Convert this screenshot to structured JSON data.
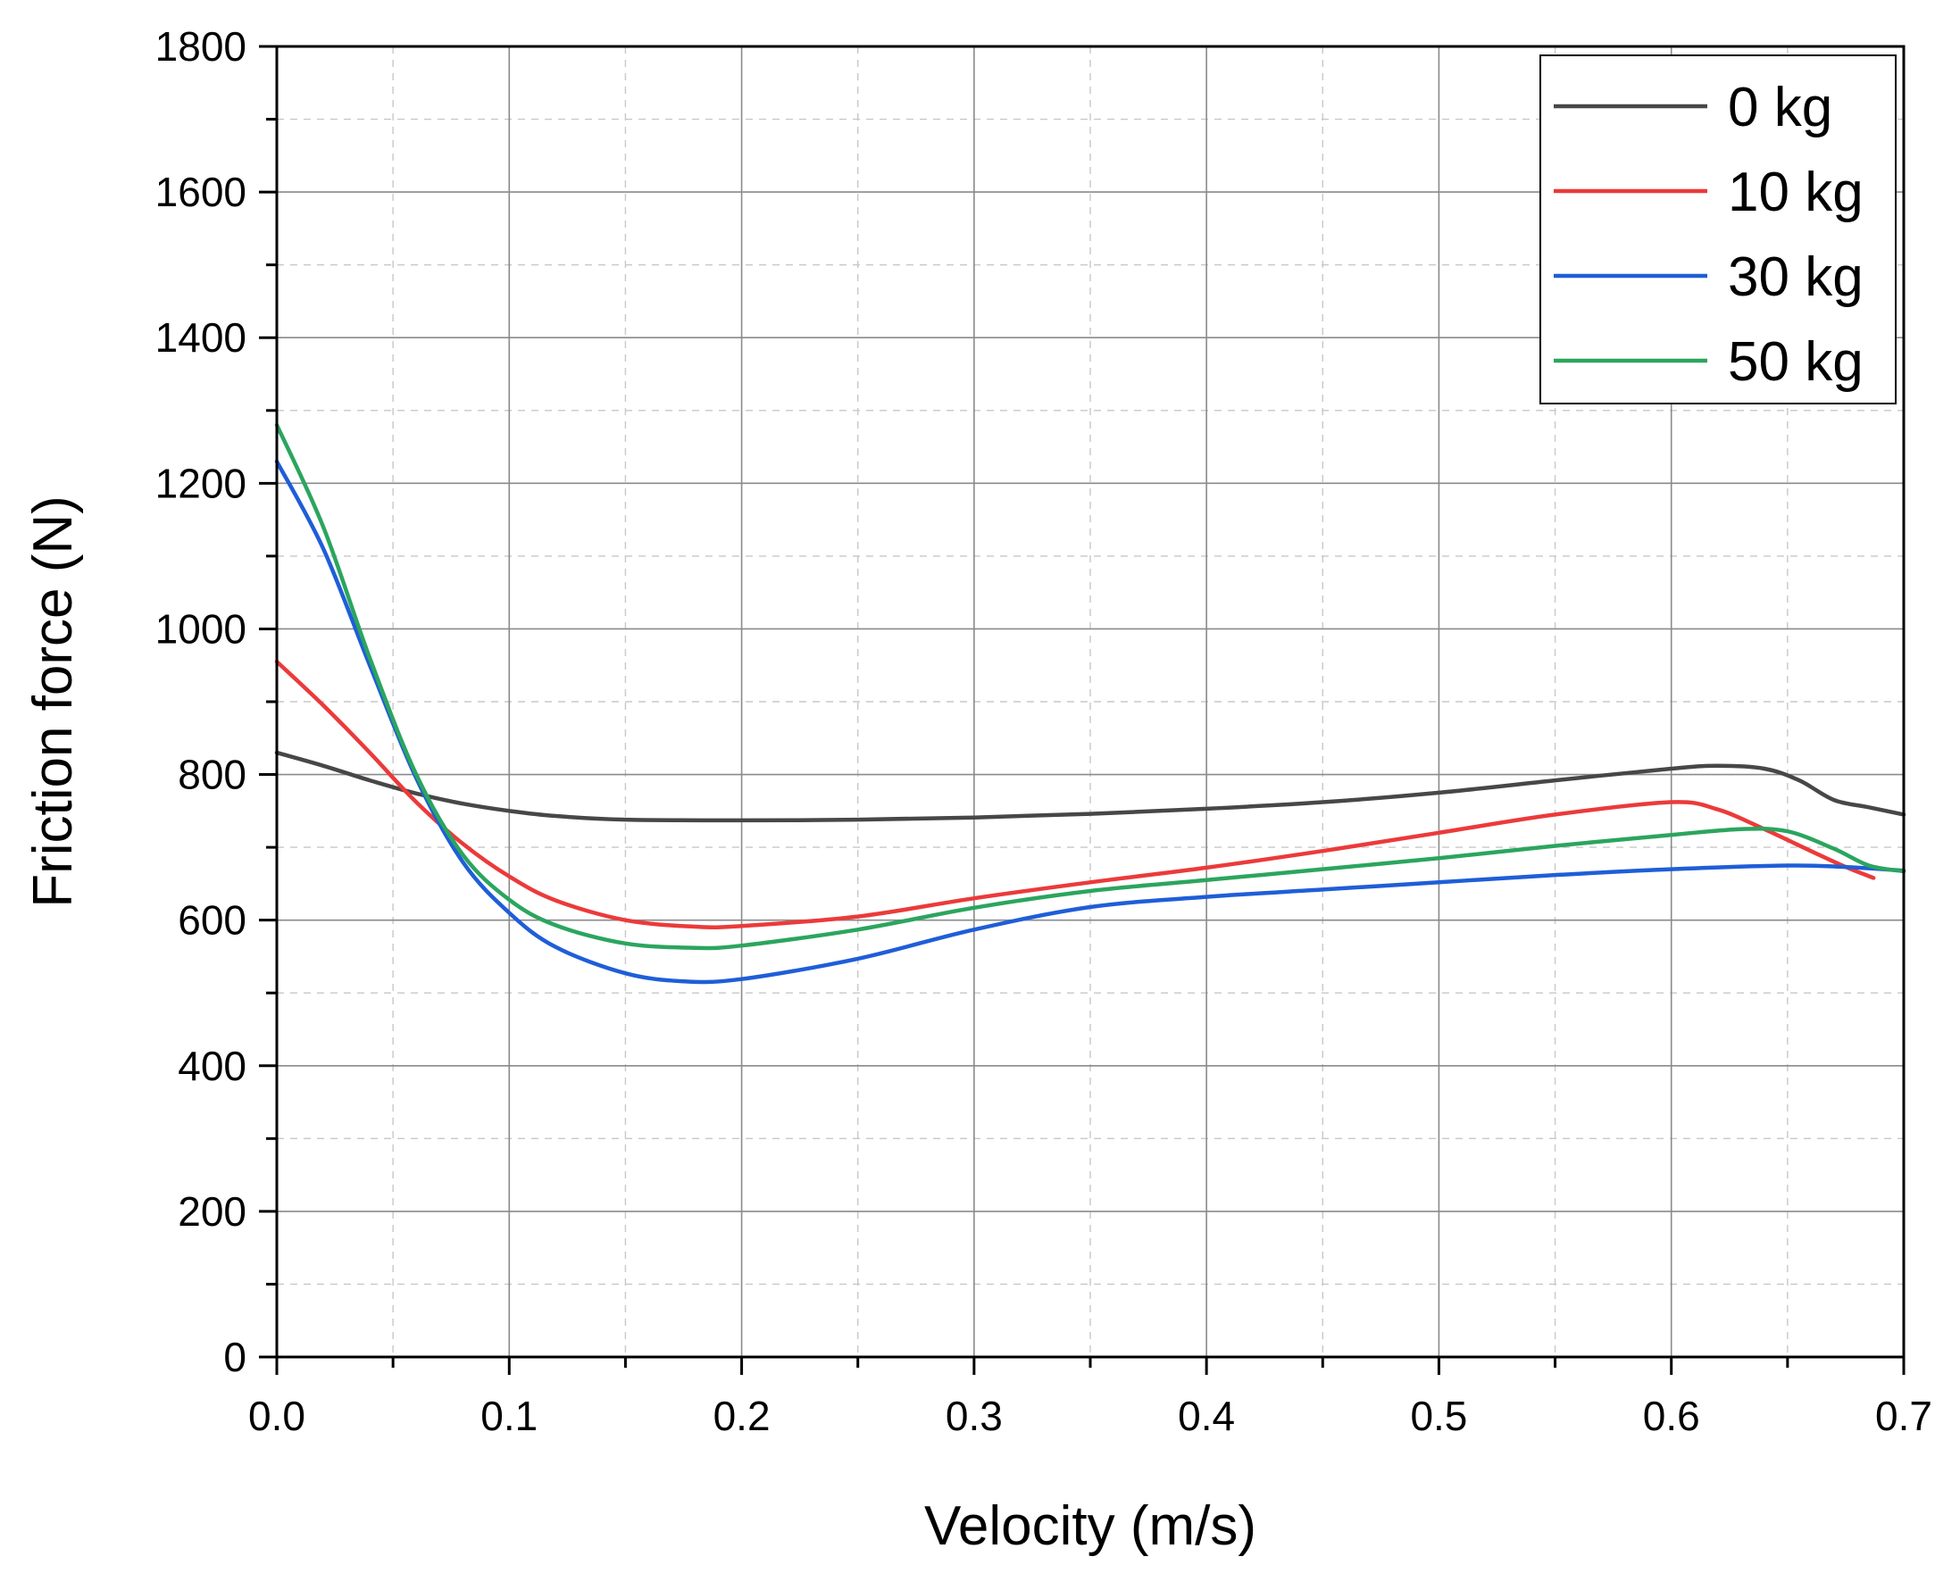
{
  "chart_data": {
    "type": "line",
    "title": "",
    "xlabel": "Velocity (m/s)",
    "ylabel": "Friction force (N)",
    "xlim": [
      0,
      0.7
    ],
    "ylim": [
      0,
      1800
    ],
    "x_ticks": [
      0.0,
      0.1,
      0.2,
      0.3,
      0.4,
      0.5,
      0.6,
      0.7
    ],
    "x_tick_labels": [
      "0.0",
      "0.1",
      "0.2",
      "0.3",
      "0.4",
      "0.5",
      "0.6",
      "0.7"
    ],
    "y_ticks": [
      0,
      200,
      400,
      600,
      800,
      1000,
      1200,
      1400,
      1600,
      1800
    ],
    "y_tick_labels": [
      "0",
      "200",
      "400",
      "600",
      "800",
      "1000",
      "1200",
      "1400",
      "1600",
      "1800"
    ],
    "grid": true,
    "legend_position": "top-right",
    "series": [
      {
        "name": "0 kg",
        "color": "#474747",
        "x": [
          0,
          0.02,
          0.04,
          0.06,
          0.08,
          0.1,
          0.12,
          0.15,
          0.2,
          0.25,
          0.3,
          0.35,
          0.4,
          0.45,
          0.5,
          0.55,
          0.6,
          0.62,
          0.64,
          0.655,
          0.67,
          0.685,
          0.7
        ],
        "y": [
          830,
          812,
          792,
          774,
          760,
          750,
          743,
          738,
          737,
          738,
          741,
          746,
          753,
          762,
          775,
          792,
          808,
          812,
          808,
          792,
          765,
          755,
          745
        ]
      },
      {
        "name": "10 kg",
        "color": "#ec3a3a",
        "x": [
          0,
          0.02,
          0.04,
          0.06,
          0.08,
          0.1,
          0.12,
          0.15,
          0.18,
          0.2,
          0.25,
          0.3,
          0.35,
          0.4,
          0.45,
          0.5,
          0.55,
          0.6,
          0.62,
          0.64,
          0.66,
          0.675,
          0.687
        ],
        "y": [
          955,
          895,
          830,
          762,
          705,
          660,
          627,
          600,
          591,
          592,
          605,
          630,
          652,
          672,
          695,
          720,
          745,
          762,
          752,
          725,
          695,
          673,
          658
        ]
      },
      {
        "name": "30 kg",
        "color": "#1f5ed8",
        "x": [
          0,
          0.02,
          0.04,
          0.06,
          0.08,
          0.1,
          0.12,
          0.15,
          0.175,
          0.2,
          0.25,
          0.3,
          0.35,
          0.4,
          0.45,
          0.5,
          0.55,
          0.6,
          0.65,
          0.675,
          0.7
        ],
        "y": [
          1230,
          1110,
          950,
          795,
          680,
          610,
          563,
          527,
          516,
          519,
          547,
          587,
          618,
          632,
          642,
          652,
          662,
          670,
          675,
          673,
          668
        ]
      },
      {
        "name": "50 kg",
        "color": "#2ba55e",
        "x": [
          0,
          0.02,
          0.04,
          0.06,
          0.08,
          0.1,
          0.12,
          0.15,
          0.18,
          0.2,
          0.25,
          0.3,
          0.35,
          0.4,
          0.45,
          0.5,
          0.55,
          0.6,
          0.63,
          0.65,
          0.67,
          0.685,
          0.7
        ],
        "y": [
          1280,
          1140,
          960,
          800,
          690,
          628,
          593,
          568,
          562,
          565,
          587,
          617,
          640,
          655,
          670,
          685,
          702,
          717,
          725,
          722,
          698,
          675,
          667
        ]
      }
    ]
  }
}
